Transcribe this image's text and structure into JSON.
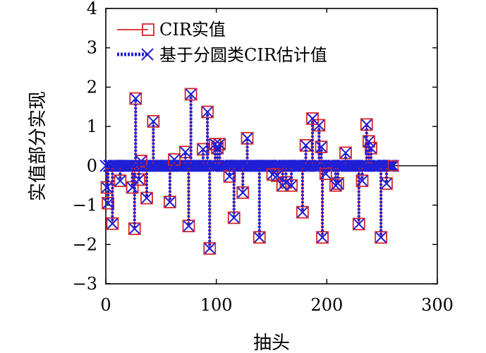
{
  "chart_data": {
    "type": "line",
    "title": "",
    "xlabel": "抽头",
    "ylabel": "实值部分实现",
    "xlim": [
      0,
      300
    ],
    "ylim": [
      -3,
      4
    ],
    "xticks": [
      0,
      100,
      200,
      300
    ],
    "yticks": [
      -3,
      -2,
      -1,
      0,
      1,
      2,
      3,
      4
    ],
    "xtick_labels": [
      "0",
      "100",
      "200",
      "300"
    ],
    "ytick_labels": [
      "−3",
      "−2",
      "−1",
      "0",
      "1",
      "2",
      "3",
      "4"
    ],
    "grid": false,
    "legend_position": "top-left",
    "colors": {
      "actual": "#d62728",
      "estimate": "#1f1fd6",
      "axis": "#000000"
    },
    "series": [
      {
        "name": "CIR实值",
        "style": "solid-square",
        "color": "#d62728",
        "taps": [
          [
            1,
            -0.55
          ],
          [
            2,
            -0.95
          ],
          [
            6,
            -1.47
          ],
          [
            13,
            -0.38
          ],
          [
            24,
            -0.55
          ],
          [
            26,
            -1.6
          ],
          [
            27,
            1.71
          ],
          [
            30,
            -0.35
          ],
          [
            32,
            0.12
          ],
          [
            37,
            -0.82
          ],
          [
            43,
            1.13
          ],
          [
            58,
            -0.92
          ],
          [
            62,
            0.16
          ],
          [
            72,
            0.35
          ],
          [
            75,
            -1.53
          ],
          [
            77,
            1.82
          ],
          [
            88,
            0.42
          ],
          [
            92,
            1.37
          ],
          [
            94,
            -2.1
          ],
          [
            99,
            0.55
          ],
          [
            101,
            0.45
          ],
          [
            103,
            0.55
          ],
          [
            112,
            -0.27
          ],
          [
            116,
            -1.32
          ],
          [
            124,
            -0.68
          ],
          [
            128,
            0.7
          ],
          [
            139,
            -1.82
          ],
          [
            151,
            -0.22
          ],
          [
            155,
            -0.25
          ],
          [
            160,
            -0.5
          ],
          [
            163,
            -0.42
          ],
          [
            168,
            -0.5
          ],
          [
            178,
            -1.18
          ],
          [
            181,
            0.52
          ],
          [
            187,
            1.2
          ],
          [
            193,
            1.03
          ],
          [
            195,
            0.48
          ],
          [
            196,
            -1.82
          ],
          [
            199,
            -0.2
          ],
          [
            208,
            -0.5
          ],
          [
            210,
            -0.45
          ],
          [
            217,
            0.33
          ],
          [
            229,
            -1.48
          ],
          [
            232,
            -0.38
          ],
          [
            236,
            1.05
          ],
          [
            238,
            0.62
          ],
          [
            240,
            0.45
          ],
          [
            249,
            -1.82
          ],
          [
            254,
            -0.45
          ]
        ]
      },
      {
        "name": "基于分圆类CIR估计值",
        "style": "dotted-x",
        "color": "#1f1fd6",
        "taps": [
          [
            1,
            -0.55
          ],
          [
            2,
            -0.95
          ],
          [
            6,
            -1.47
          ],
          [
            13,
            -0.38
          ],
          [
            24,
            -0.55
          ],
          [
            26,
            -1.6
          ],
          [
            27,
            1.71
          ],
          [
            30,
            -0.35
          ],
          [
            32,
            0.12
          ],
          [
            37,
            -0.82
          ],
          [
            43,
            1.13
          ],
          [
            58,
            -0.92
          ],
          [
            62,
            0.16
          ],
          [
            72,
            0.35
          ],
          [
            75,
            -1.53
          ],
          [
            77,
            1.82
          ],
          [
            88,
            0.42
          ],
          [
            92,
            1.37
          ],
          [
            94,
            -2.1
          ],
          [
            99,
            0.55
          ],
          [
            101,
            0.45
          ],
          [
            103,
            0.55
          ],
          [
            112,
            -0.27
          ],
          [
            116,
            -1.32
          ],
          [
            124,
            -0.68
          ],
          [
            128,
            0.7
          ],
          [
            139,
            -1.82
          ],
          [
            151,
            -0.22
          ],
          [
            155,
            -0.25
          ],
          [
            160,
            -0.5
          ],
          [
            163,
            -0.42
          ],
          [
            168,
            -0.5
          ],
          [
            178,
            -1.18
          ],
          [
            181,
            0.52
          ],
          [
            187,
            1.2
          ],
          [
            193,
            1.03
          ],
          [
            195,
            0.48
          ],
          [
            196,
            -1.82
          ],
          [
            199,
            -0.2
          ],
          [
            208,
            -0.5
          ],
          [
            210,
            -0.45
          ],
          [
            217,
            0.33
          ],
          [
            229,
            -1.48
          ],
          [
            232,
            -0.38
          ],
          [
            236,
            1.05
          ],
          [
            238,
            0.62
          ],
          [
            240,
            0.45
          ],
          [
            249,
            -1.82
          ],
          [
            254,
            -0.45
          ]
        ]
      }
    ],
    "n_taps": 260
  }
}
